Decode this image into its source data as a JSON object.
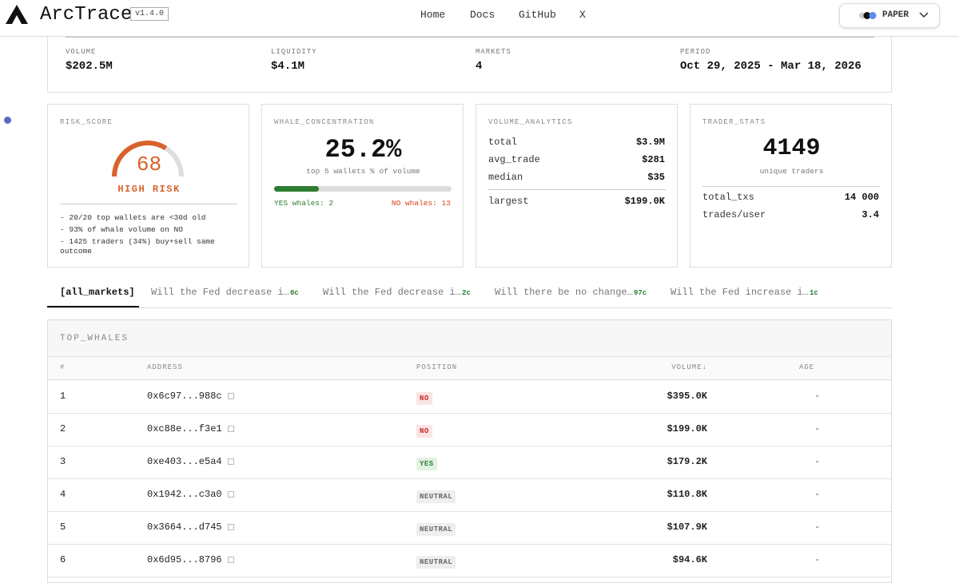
{
  "header": {
    "logo": "ArcTrace",
    "version": "v1.4.0",
    "nav": [
      "Home",
      "Docs",
      "GitHub",
      "X"
    ],
    "theme": "PAPER"
  },
  "summary": [
    {
      "label": "VOLUME",
      "value": "$202.5M"
    },
    {
      "label": "LIQUIDITY",
      "value": "$4.1M"
    },
    {
      "label": "MARKETS",
      "value": "4"
    },
    {
      "label": "PERIOD",
      "value": "Oct 29, 2025 - Mar 18, 2026"
    }
  ],
  "risk": {
    "title": "RISK_SCORE",
    "score": 68,
    "level": "HIGH RISK",
    "notes": [
      "- 20/20 top wallets are <30d old",
      "- 93% of whale volume on NO",
      "- 1425 traders (34%) buy+sell same outcome"
    ]
  },
  "whale": {
    "title": "WHALE_CONCENTRATION",
    "value": 25.2,
    "value_label": "25.2%",
    "caption": "top 5 wallets % of volume",
    "yes": "YES whales: 2",
    "no": "NO whales: 13"
  },
  "volume": {
    "title": "VOLUME_ANALYTICS",
    "rows": [
      [
        "total",
        "$3.9M"
      ],
      [
        "avg_trade",
        "$281"
      ],
      [
        "median",
        "$35"
      ]
    ],
    "largest": [
      "largest",
      "$199.0K"
    ]
  },
  "traders": {
    "title": "TRADER_STATS",
    "count": 4149,
    "caption": "unique traders",
    "rows": [
      [
        "total_txs",
        "14 000"
      ],
      [
        "trades/user",
        "3.4"
      ]
    ]
  },
  "tabs": [
    {
      "label": "[all_markets]"
    },
    {
      "label": "Will the Fed decrease i…",
      "price": "0c"
    },
    {
      "label": "Will the Fed decrease i…",
      "price": "2c"
    },
    {
      "label": "Will there be no change…",
      "price": "97c"
    },
    {
      "label": "Will the Fed increase i…",
      "price": "1c"
    }
  ],
  "table": {
    "title": "TOP_WHALES",
    "columns": [
      "#",
      "ADDRESS",
      "POSITION",
      "VOLUME↓",
      "AGE"
    ],
    "rows": [
      [
        "1",
        "0x6c97...988c",
        "NO",
        "$395.0K",
        "-"
      ],
      [
        "2",
        "0xc88e...f3e1",
        "NO",
        "$199.0K",
        "-"
      ],
      [
        "3",
        "0xe403...e5a4",
        "YES",
        "$179.2K",
        "-"
      ],
      [
        "4",
        "0x1942...c3a0",
        "NEUTRAL",
        "$110.8K",
        "-"
      ],
      [
        "5",
        "0x3664...d745",
        "NEUTRAL",
        "$107.9K",
        "-"
      ],
      [
        "6",
        "0x6d95...8796",
        "NEUTRAL",
        "$94.6K",
        "-"
      ]
    ]
  }
}
